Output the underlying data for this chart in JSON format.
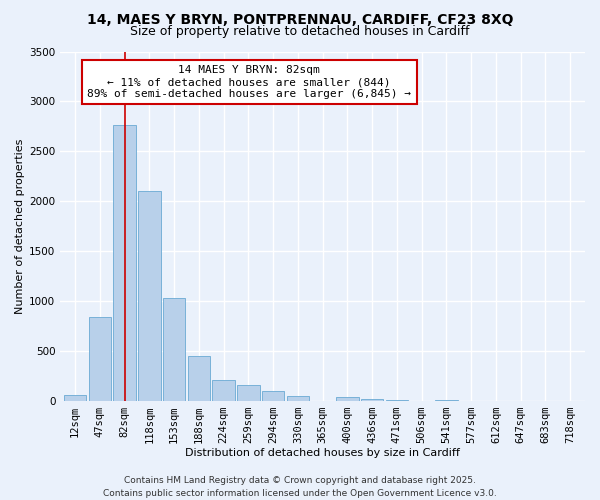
{
  "title": "14, MAES Y BRYN, PONTPRENNAU, CARDIFF, CF23 8XQ",
  "subtitle": "Size of property relative to detached houses in Cardiff",
  "xlabel": "Distribution of detached houses by size in Cardiff",
  "ylabel": "Number of detached properties",
  "categories": [
    "12sqm",
    "47sqm",
    "82sqm",
    "118sqm",
    "153sqm",
    "188sqm",
    "224sqm",
    "259sqm",
    "294sqm",
    "330sqm",
    "365sqm",
    "400sqm",
    "436sqm",
    "471sqm",
    "506sqm",
    "541sqm",
    "577sqm",
    "612sqm",
    "647sqm",
    "683sqm",
    "718sqm"
  ],
  "values": [
    55,
    840,
    2760,
    2100,
    1030,
    450,
    210,
    155,
    95,
    50,
    0,
    35,
    15,
    10,
    0,
    5,
    0,
    0,
    0,
    0,
    0
  ],
  "bar_color": "#b8d0ea",
  "bar_edge_color": "#6aaad4",
  "highlight_index": 2,
  "highlight_line_color": "#cc0000",
  "ylim": [
    0,
    3500
  ],
  "yticks": [
    0,
    500,
    1000,
    1500,
    2000,
    2500,
    3000,
    3500
  ],
  "annotation_title": "14 MAES Y BRYN: 82sqm",
  "annotation_line1": "← 11% of detached houses are smaller (844)",
  "annotation_line2": "89% of semi-detached houses are larger (6,845) →",
  "annotation_box_facecolor": "#ffffff",
  "annotation_box_edgecolor": "#cc0000",
  "footer1": "Contains HM Land Registry data © Crown copyright and database right 2025.",
  "footer2": "Contains public sector information licensed under the Open Government Licence v3.0.",
  "background_color": "#eaf1fb",
  "grid_color": "#ffffff",
  "title_fontsize": 10,
  "subtitle_fontsize": 9,
  "axis_label_fontsize": 8,
  "tick_fontsize": 7.5,
  "annotation_fontsize": 8,
  "footer_fontsize": 6.5
}
